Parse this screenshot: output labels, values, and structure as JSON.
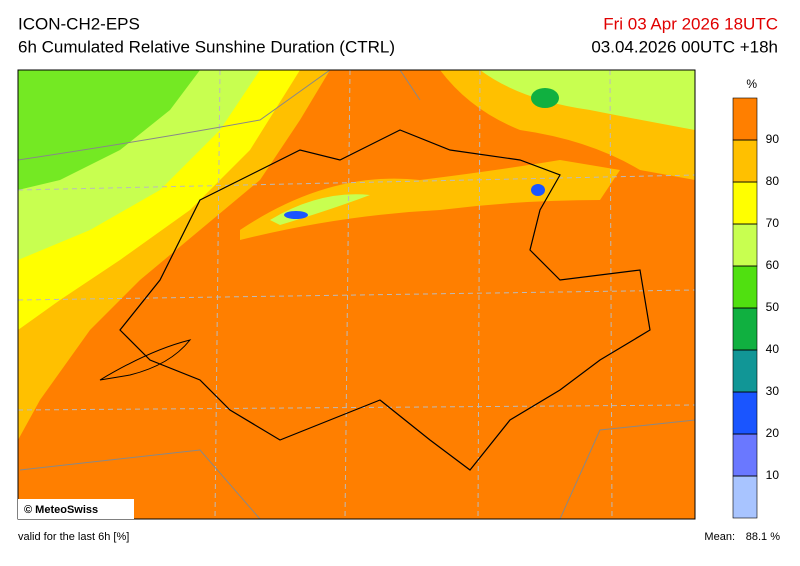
{
  "header": {
    "model": "ICON-CH2-EPS",
    "product": "6h Cumulated Relative Sunshine Duration (CTRL)",
    "valid_time": "Fri 03 Apr 2026 18UTC",
    "run": "03.04.2026 00UTC +18h"
  },
  "map": {
    "copyright": "© MeteoSwiss"
  },
  "colorbar": {
    "unit": "%",
    "range": [
      0,
      100
    ],
    "ticks": [
      10,
      20,
      30,
      40,
      50,
      60,
      70,
      80,
      90
    ],
    "colors": [
      "#a8c4ff",
      "#6a78ff",
      "#1a55ff",
      "#119696",
      "#10b040",
      "#50e010",
      "#c8ff50",
      "#ffff00",
      "#ffc000",
      "#ff7f00"
    ]
  },
  "footer": {
    "note": "valid for the last 6h [%]",
    "mean_label": "Mean:",
    "mean_value": "88.1 %"
  }
}
